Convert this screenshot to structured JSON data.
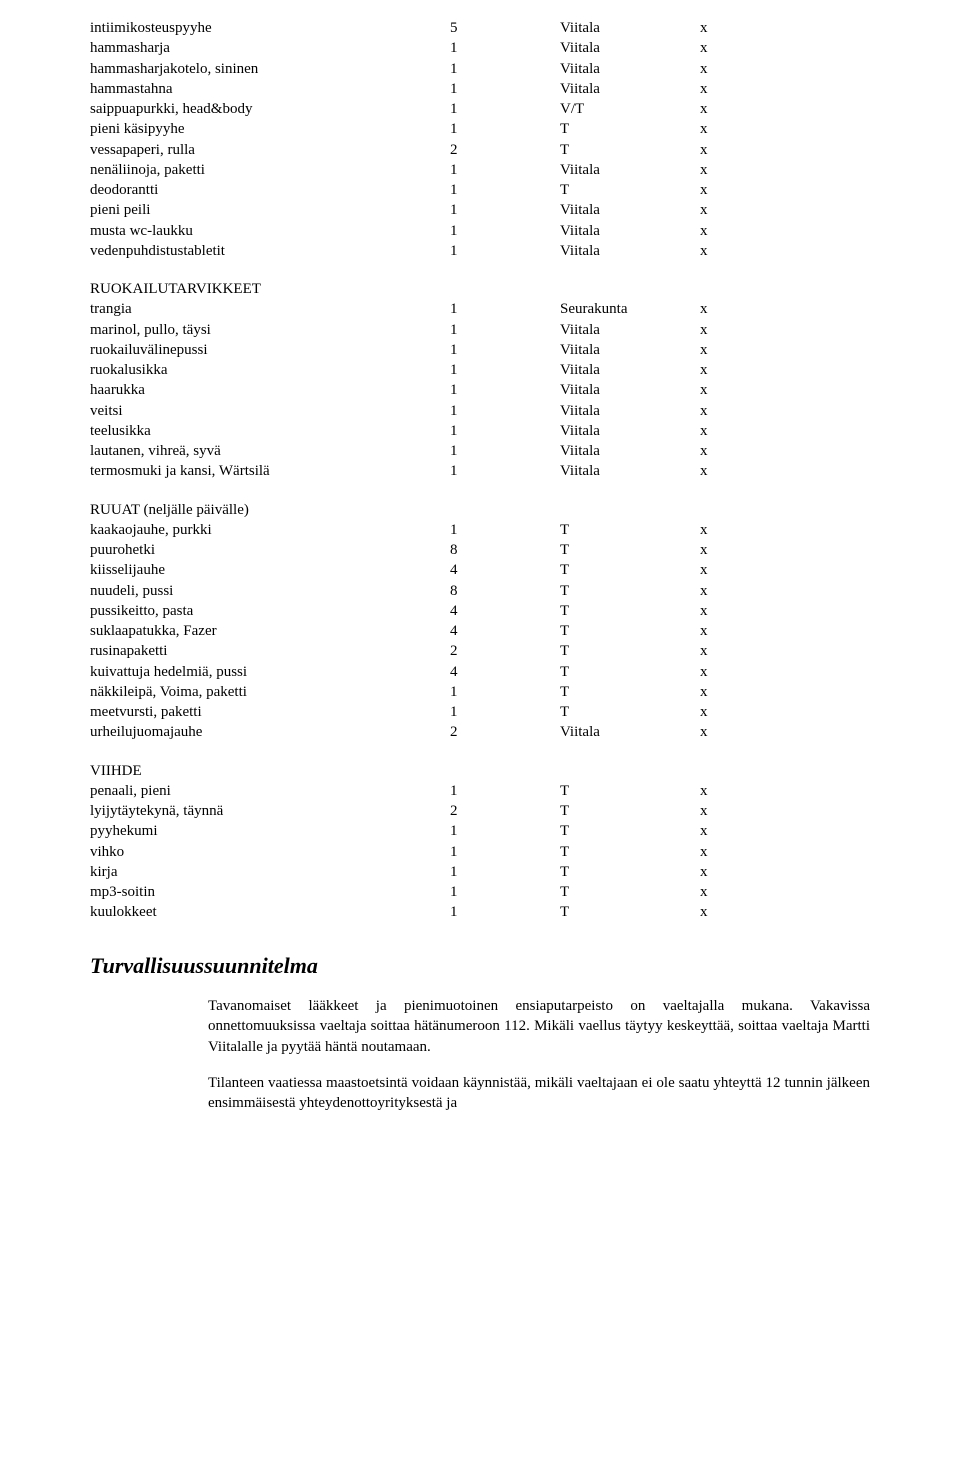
{
  "sectionA": {
    "rows": [
      {
        "name": "intiimikosteuspyyhe",
        "qty": "5",
        "src": "Viitala",
        "chk": "x"
      },
      {
        "name": "hammasharja",
        "qty": "1",
        "src": "Viitala",
        "chk": "x"
      },
      {
        "name": "hammasharjakotelo, sininen",
        "qty": "1",
        "src": "Viitala",
        "chk": "x"
      },
      {
        "name": "hammastahna",
        "qty": "1",
        "src": "Viitala",
        "chk": "x"
      },
      {
        "name": "saippuapurkki, head&body",
        "qty": "1",
        "src": "V/T",
        "chk": "x"
      },
      {
        "name": "pieni käsipyyhe",
        "qty": "1",
        "src": "T",
        "chk": "x"
      },
      {
        "name": "vessapaperi, rulla",
        "qty": "2",
        "src": "T",
        "chk": "x"
      },
      {
        "name": "nenäliinoja, paketti",
        "qty": "1",
        "src": "Viitala",
        "chk": "x"
      },
      {
        "name": "deodorantti",
        "qty": "1",
        "src": "T",
        "chk": "x"
      },
      {
        "name": "pieni peili",
        "qty": "1",
        "src": "Viitala",
        "chk": "x"
      },
      {
        "name": "musta wc-laukku",
        "qty": "1",
        "src": "Viitala",
        "chk": "x"
      },
      {
        "name": "vedenpuhdistustabletit",
        "qty": "1",
        "src": "Viitala",
        "chk": "x"
      }
    ]
  },
  "sectionB": {
    "title": "RUOKAILUTARVIKKEET",
    "rows": [
      {
        "name": "trangia",
        "qty": "1",
        "src": "Seurakunta",
        "chk": "x"
      },
      {
        "name": "marinol, pullo, täysi",
        "qty": "1",
        "src": "Viitala",
        "chk": "x"
      },
      {
        "name": "ruokailuvälinepussi",
        "qty": "1",
        "src": "Viitala",
        "chk": "x"
      },
      {
        "name": "ruokalusikka",
        "qty": "1",
        "src": "Viitala",
        "chk": "x"
      },
      {
        "name": "haarukka",
        "qty": "1",
        "src": "Viitala",
        "chk": "x"
      },
      {
        "name": "veitsi",
        "qty": "1",
        "src": "Viitala",
        "chk": "x"
      },
      {
        "name": "teelusikka",
        "qty": "1",
        "src": "Viitala",
        "chk": "x"
      },
      {
        "name": "lautanen, vihreä, syvä",
        "qty": "1",
        "src": "Viitala",
        "chk": "x"
      },
      {
        "name": "termosmuki ja kansi, Wärtsilä",
        "qty": "1",
        "src": "Viitala",
        "chk": "x"
      }
    ]
  },
  "sectionC": {
    "title": "RUUAT (neljälle päivälle)",
    "rows": [
      {
        "name": "kaakaojauhe, purkki",
        "qty": "1",
        "src": "T",
        "chk": "x"
      },
      {
        "name": "puurohetki",
        "qty": "8",
        "src": "T",
        "chk": "x"
      },
      {
        "name": "kiisselijauhe",
        "qty": "4",
        "src": "T",
        "chk": "x"
      },
      {
        "name": "nuudeli, pussi",
        "qty": "8",
        "src": "T",
        "chk": "x"
      },
      {
        "name": "pussikeitto, pasta",
        "qty": "4",
        "src": "T",
        "chk": "x"
      },
      {
        "name": "suklaapatukka, Fazer",
        "qty": "4",
        "src": "T",
        "chk": "x"
      },
      {
        "name": "rusinapaketti",
        "qty": "2",
        "src": "T",
        "chk": "x"
      },
      {
        "name": "kuivattuja hedelmiä, pussi",
        "qty": "4",
        "src": "T",
        "chk": "x"
      },
      {
        "name": "näkkileipä, Voima, paketti",
        "qty": "1",
        "src": "T",
        "chk": "x"
      },
      {
        "name": "meetvursti, paketti",
        "qty": "1",
        "src": "T",
        "chk": "x"
      },
      {
        "name": "urheilujuomajauhe",
        "qty": "2",
        "src": "Viitala",
        "chk": "x"
      }
    ]
  },
  "sectionD": {
    "title": "VIIHDE",
    "rows": [
      {
        "name": "penaali, pieni",
        "qty": "1",
        "src": "T",
        "chk": "x"
      },
      {
        "name": "lyijytäytekynä, täynnä",
        "qty": "2",
        "src": "T",
        "chk": "x"
      },
      {
        "name": "pyyhekumi",
        "qty": "1",
        "src": "T",
        "chk": "x"
      },
      {
        "name": "vihko",
        "qty": "1",
        "src": "T",
        "chk": "x"
      },
      {
        "name": "kirja",
        "qty": "1",
        "src": "T",
        "chk": "x"
      },
      {
        "name": "mp3-soitin",
        "qty": "1",
        "src": "T",
        "chk": "x"
      },
      {
        "name": "kuulokkeet",
        "qty": "1",
        "src": "T",
        "chk": "x"
      }
    ]
  },
  "heading": "Turvallisuussuunnitelma",
  "para1": "Tavanomaiset lääkkeet ja pienimuotoinen ensiaputarpeisto on vaeltajalla mukana. Vakavissa onnettomuuksissa vaeltaja soittaa hätänumeroon 112. Mikäli vaellus täytyy keskeyttää, soittaa vaeltaja Martti Viitalalle ja pyytää häntä noutamaan.",
  "para2": "Tilanteen vaatiessa maastoetsintä voidaan käynnistää, mikäli vaeltajaan ei ole saatu yhteyttä 12 tunnin jälkeen ensimmäisestä yhteydenottoyrityksestä ja"
}
